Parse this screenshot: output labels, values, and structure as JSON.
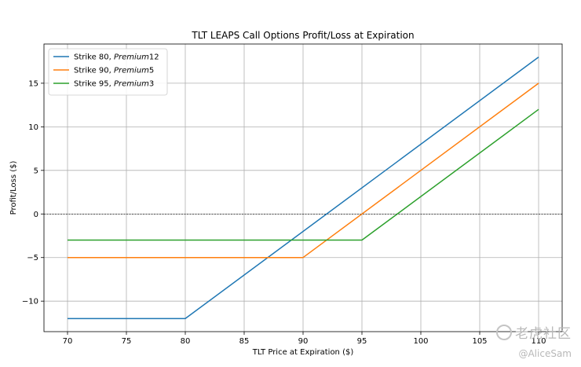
{
  "chart_data": {
    "type": "line",
    "title": "TLT LEAPS Call Options Profit/Loss at Expiration",
    "xlabel": "TLT Price at Expiration ($)",
    "ylabel": "Profit/Loss ($)",
    "xlim": [
      68,
      112
    ],
    "ylim": [
      -13.5,
      19.5
    ],
    "xticks": [
      70,
      75,
      80,
      85,
      90,
      95,
      100,
      105,
      110
    ],
    "yticks": [
      -10,
      -5,
      0,
      5,
      10,
      15
    ],
    "grid": true,
    "legend_position": "top-left",
    "zero_line": true,
    "series": [
      {
        "name": "Strike 80, Premium12",
        "label_plain": "Strike 80, ",
        "label_italic": "Premium",
        "label_num": "12",
        "color": "#1f77b4",
        "x": [
          70,
          80,
          110
        ],
        "y": [
          -12,
          -12,
          18
        ]
      },
      {
        "name": "Strike 90, Premium5",
        "label_plain": "Strike 90, ",
        "label_italic": "Premium",
        "label_num": "5",
        "color": "#ff7f0e",
        "x": [
          70,
          90,
          110
        ],
        "y": [
          -5,
          -5,
          15
        ]
      },
      {
        "name": "Strike 95, Premium3",
        "label_plain": "Strike 95, ",
        "label_italic": "Premium",
        "label_num": "3",
        "color": "#2ca02c",
        "x": [
          70,
          95,
          110
        ],
        "y": [
          -3,
          -3,
          12
        ]
      }
    ]
  },
  "watermark": {
    "line1": "老虎社区",
    "line2": "@AliceSam"
  }
}
